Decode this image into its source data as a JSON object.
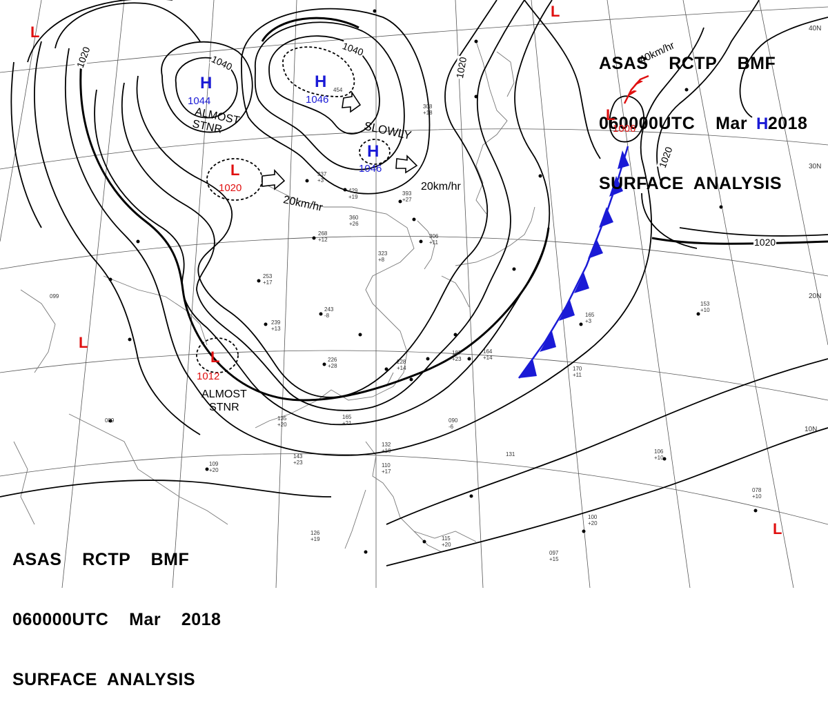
{
  "header": {
    "line1": "ASAS    RCTP    BMF",
    "line2": "060000UTC    Mar    2018",
    "line3": "SURFACE  ANALYSIS"
  },
  "colors": {
    "high": "#1a1ad6",
    "low": "#e01010",
    "isobar": "#000000",
    "cold_front": "#1a1ad6",
    "coast": "#777777"
  },
  "pressure_centers": [
    {
      "type": "H",
      "value": "1044"
    },
    {
      "type": "H",
      "value": "1046"
    },
    {
      "type": "H",
      "value": "1046"
    },
    {
      "type": "L",
      "value": "1020"
    },
    {
      "type": "L",
      "value": "1012"
    },
    {
      "type": "L",
      "value": "1006"
    },
    {
      "type": "H",
      "value": ""
    },
    {
      "type": "L",
      "value": ""
    },
    {
      "type": "L",
      "value": ""
    },
    {
      "type": "L",
      "value": ""
    },
    {
      "type": "L",
      "value": ""
    }
  ],
  "isobar_labels": [
    "1040",
    "1040",
    "1020",
    "1020",
    "1020",
    "1020"
  ],
  "motion_labels": {
    "slowly": "SLOWLY",
    "speed_a": "20km/hr",
    "speed_b": "20km/hr",
    "speed_c": "40km/hr",
    "almost_stnr_a": "ALMOST\nSTNR",
    "almost_stnr_b": "ALMOST\nSTNR"
  },
  "latitude_labels": [
    "40N",
    "30N",
    "20N",
    "10N"
  ],
  "station_samples": [
    "253\n+17",
    "239\n+13",
    "226\n+28",
    "243\n-8",
    "228\n+14",
    "187\n+23",
    "164\n+14",
    "170\n+11",
    "165\n+3",
    "153\n+10",
    "143\n+23",
    "109\n+20",
    "135\n+20",
    "165\n+21",
    "090\n-6",
    "131",
    "106\n+10",
    "078\n+10",
    "100\n+20",
    "097\n+15",
    "126\n+19",
    "115\n+20",
    "132\n+10",
    "110\n+17",
    "393\n+27",
    "429\n+19",
    "337\n+3",
    "360\n+26",
    "268\n+12",
    "323\n+8",
    "306\n+11",
    "308\n+18",
    "454",
    "099",
    "089"
  ]
}
